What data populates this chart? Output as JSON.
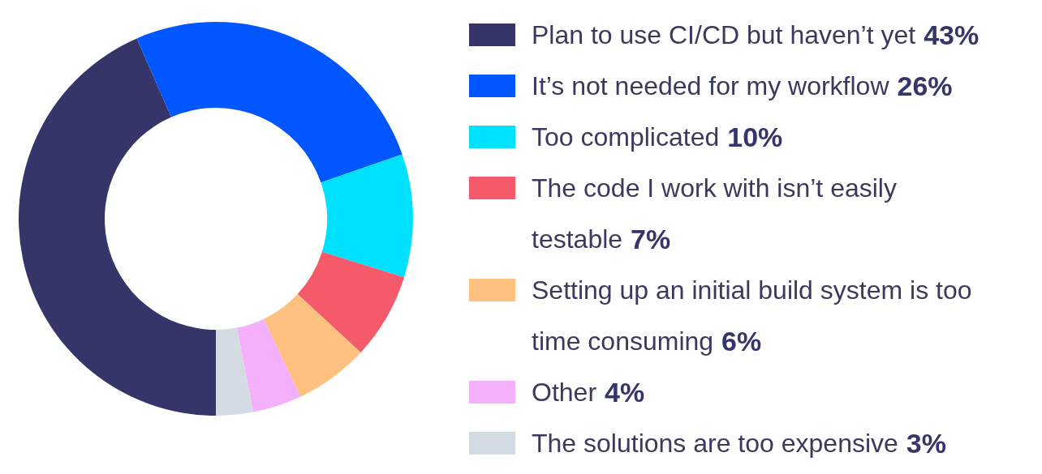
{
  "chart_data": {
    "type": "donut",
    "categories": [
      "Plan to use CI/CD but haven’t yet",
      "It’s not needed for my workflow",
      "Too complicated",
      "The code I work with isn’t easily testable",
      "Setting up an initial build system is too time consuming",
      "Other",
      "The solutions are too expensive"
    ],
    "values": [
      43,
      26,
      10,
      7,
      6,
      4,
      3
    ],
    "value_labels": [
      "43%",
      "26%",
      "10%",
      "7%",
      "6%",
      "4%",
      "3%"
    ],
    "colors": [
      "#35356a",
      "#0057ff",
      "#00e0ff",
      "#f55a6a",
      "#ffc17f",
      "#f4b0fa",
      "#d4dce3"
    ],
    "legend": "right"
  }
}
